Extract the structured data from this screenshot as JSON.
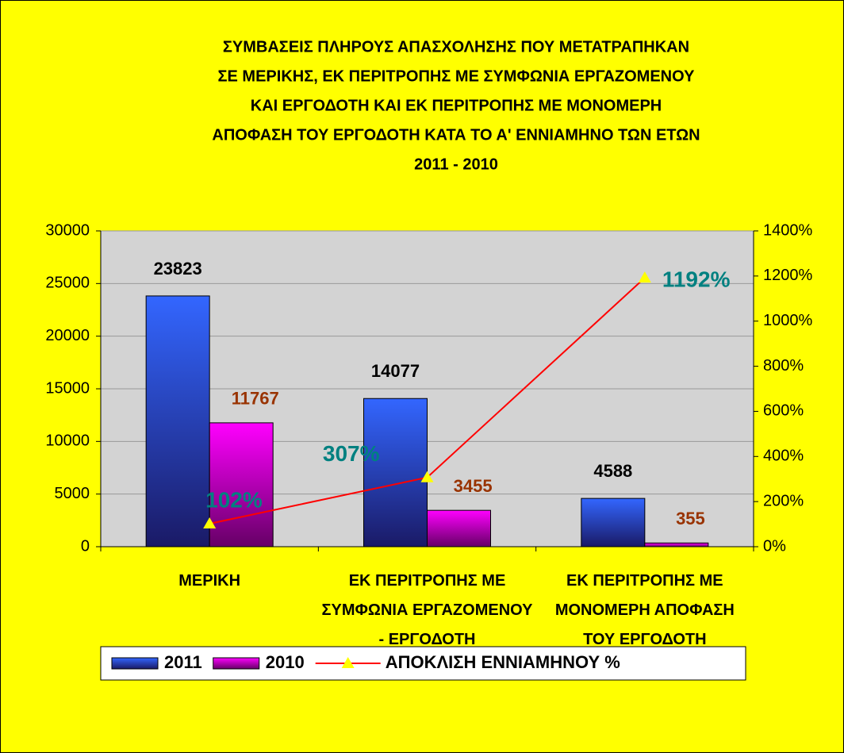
{
  "chart_data": {
    "type": "bar+line",
    "title": [
      "ΣΥΜΒΑΣΕΙΣ ΠΛΗΡΟΥΣ ΑΠΑΣΧΟΛΗΣΗΣ ΠΟΥ ΜΕΤΑΤΡΑΠΗΚΑΝ",
      "ΣΕ ΜΕΡΙΚΗΣ, ΕΚ ΠΕΡΙΤΡΟΠΗΣ ΜΕ ΣΥΜΦΩΝΙΑ ΕΡΓΑΖΟΜΕΝΟΥ",
      "ΚΑΙ ΕΡΓΟΔΟΤΗ ΚΑΙ ΕΚ ΠΕΡΙΤΡΟΠΗΣ ΜΕ ΜΟΝΟΜΕΡΗ",
      "ΑΠΟΦΑΣΗ ΤΟΥ ΕΡΓΟΔΟΤΗ ΚΑΤΑ ΤΟ Α' ΕΝΝΙΑΜΗΝΟ ΤΩΝ ΕΤΩΝ",
      "2011 - 2010"
    ],
    "categories": [
      "ΜΕΡΙΚΗ",
      "ΕΚ ΠΕΡΙΤΡΟΠΗΣ ΜΕ ΣΥΜΦΩΝΙΑ ΕΡΓΑΖΟΜΕΝΟΥ - ΕΡΓΟΔΟΤΗ",
      "ΕΚ ΠΕΡΙΤΡΟΠΗΣ ΜΕ ΜΟΝΟΜΕΡΗ ΑΠΟΦΑΣΗ ΤΟΥ ΕΡΓΟΔΟΤΗ"
    ],
    "series": [
      {
        "name": "2011",
        "type": "bar",
        "color": "#3366ff",
        "label_color": "#000000",
        "values": [
          23823,
          14077,
          4588
        ]
      },
      {
        "name": "2010",
        "type": "bar",
        "color": "#ff00ff",
        "label_color": "#993300",
        "values": [
          11767,
          3455,
          355
        ]
      },
      {
        "name": "ΑΠΟΚΛΙΣΗ ΕΝΝΙΑΜΗΝΟΥ %",
        "type": "line",
        "axis": "y2",
        "color": "#ff0000",
        "marker_color": "#ffff00",
        "label_color": "#008080",
        "values": [
          102,
          307,
          1192
        ],
        "value_labels": [
          "102%",
          "307%",
          "1192%"
        ]
      }
    ],
    "ylim": [
      0,
      30000
    ],
    "yticks": [
      0,
      5000,
      10000,
      15000,
      20000,
      25000,
      30000
    ],
    "y2lim": [
      0,
      1400
    ],
    "y2ticks": [
      {
        "value": 0,
        "label": "0%"
      },
      {
        "value": 200,
        "label": "200%"
      },
      {
        "value": 400,
        "label": "400%"
      },
      {
        "value": 600,
        "label": "600%"
      },
      {
        "value": 800,
        "label": "800%"
      },
      {
        "value": 1000,
        "label": "1000%"
      },
      {
        "value": 1200,
        "label": "1200%"
      },
      {
        "value": 1400,
        "label": "1400%"
      }
    ],
    "grid": true,
    "legend": "bottom"
  }
}
